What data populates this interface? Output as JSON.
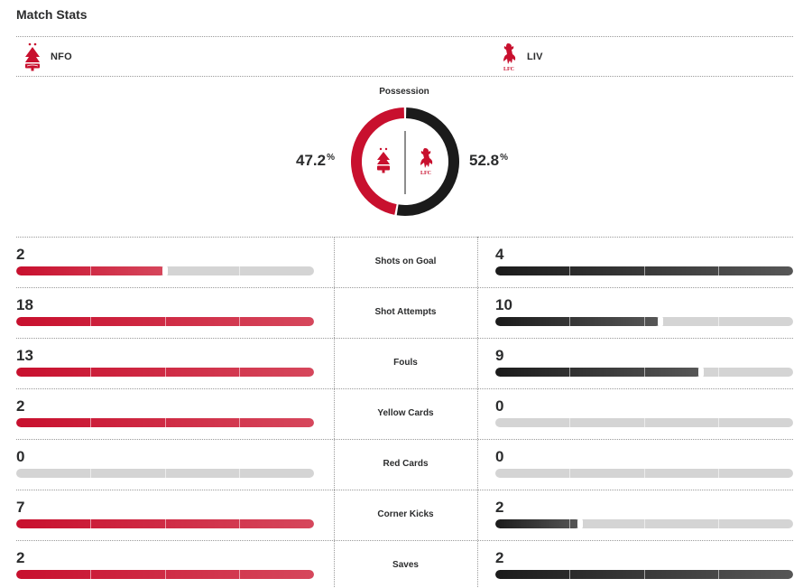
{
  "page": {
    "title": "Match Stats"
  },
  "teams": {
    "home": {
      "abbr": "NFO",
      "crest": "nottingham-forest-crest-icon",
      "color": "#c8102e"
    },
    "away": {
      "abbr": "LIV",
      "crest": "liverpool-crest-icon",
      "color": "#1b1b1b",
      "crest_color": "#c8102e"
    }
  },
  "possession": {
    "label": "Possession",
    "home_value": "47.2",
    "away_value": "52.8",
    "unit": "%",
    "home_pct": 47.2,
    "away_pct": 52.8
  },
  "stats": [
    {
      "label": "Shots on Goal",
      "home": "2",
      "away": "4",
      "home_fill": 0.5,
      "away_fill": 1.0
    },
    {
      "label": "Shot Attempts",
      "home": "18",
      "away": "10",
      "home_fill": 1.0,
      "away_fill": 0.556
    },
    {
      "label": "Fouls",
      "home": "13",
      "away": "9",
      "home_fill": 1.0,
      "away_fill": 0.692
    },
    {
      "label": "Yellow Cards",
      "home": "2",
      "away": "0",
      "home_fill": 1.0,
      "away_fill": 0.0
    },
    {
      "label": "Red Cards",
      "home": "0",
      "away": "0",
      "home_fill": 0.0,
      "away_fill": 0.0
    },
    {
      "label": "Corner Kicks",
      "home": "7",
      "away": "2",
      "home_fill": 1.0,
      "away_fill": 0.286
    },
    {
      "label": "Saves",
      "home": "2",
      "away": "2",
      "home_fill": 1.0,
      "away_fill": 1.0
    }
  ]
}
